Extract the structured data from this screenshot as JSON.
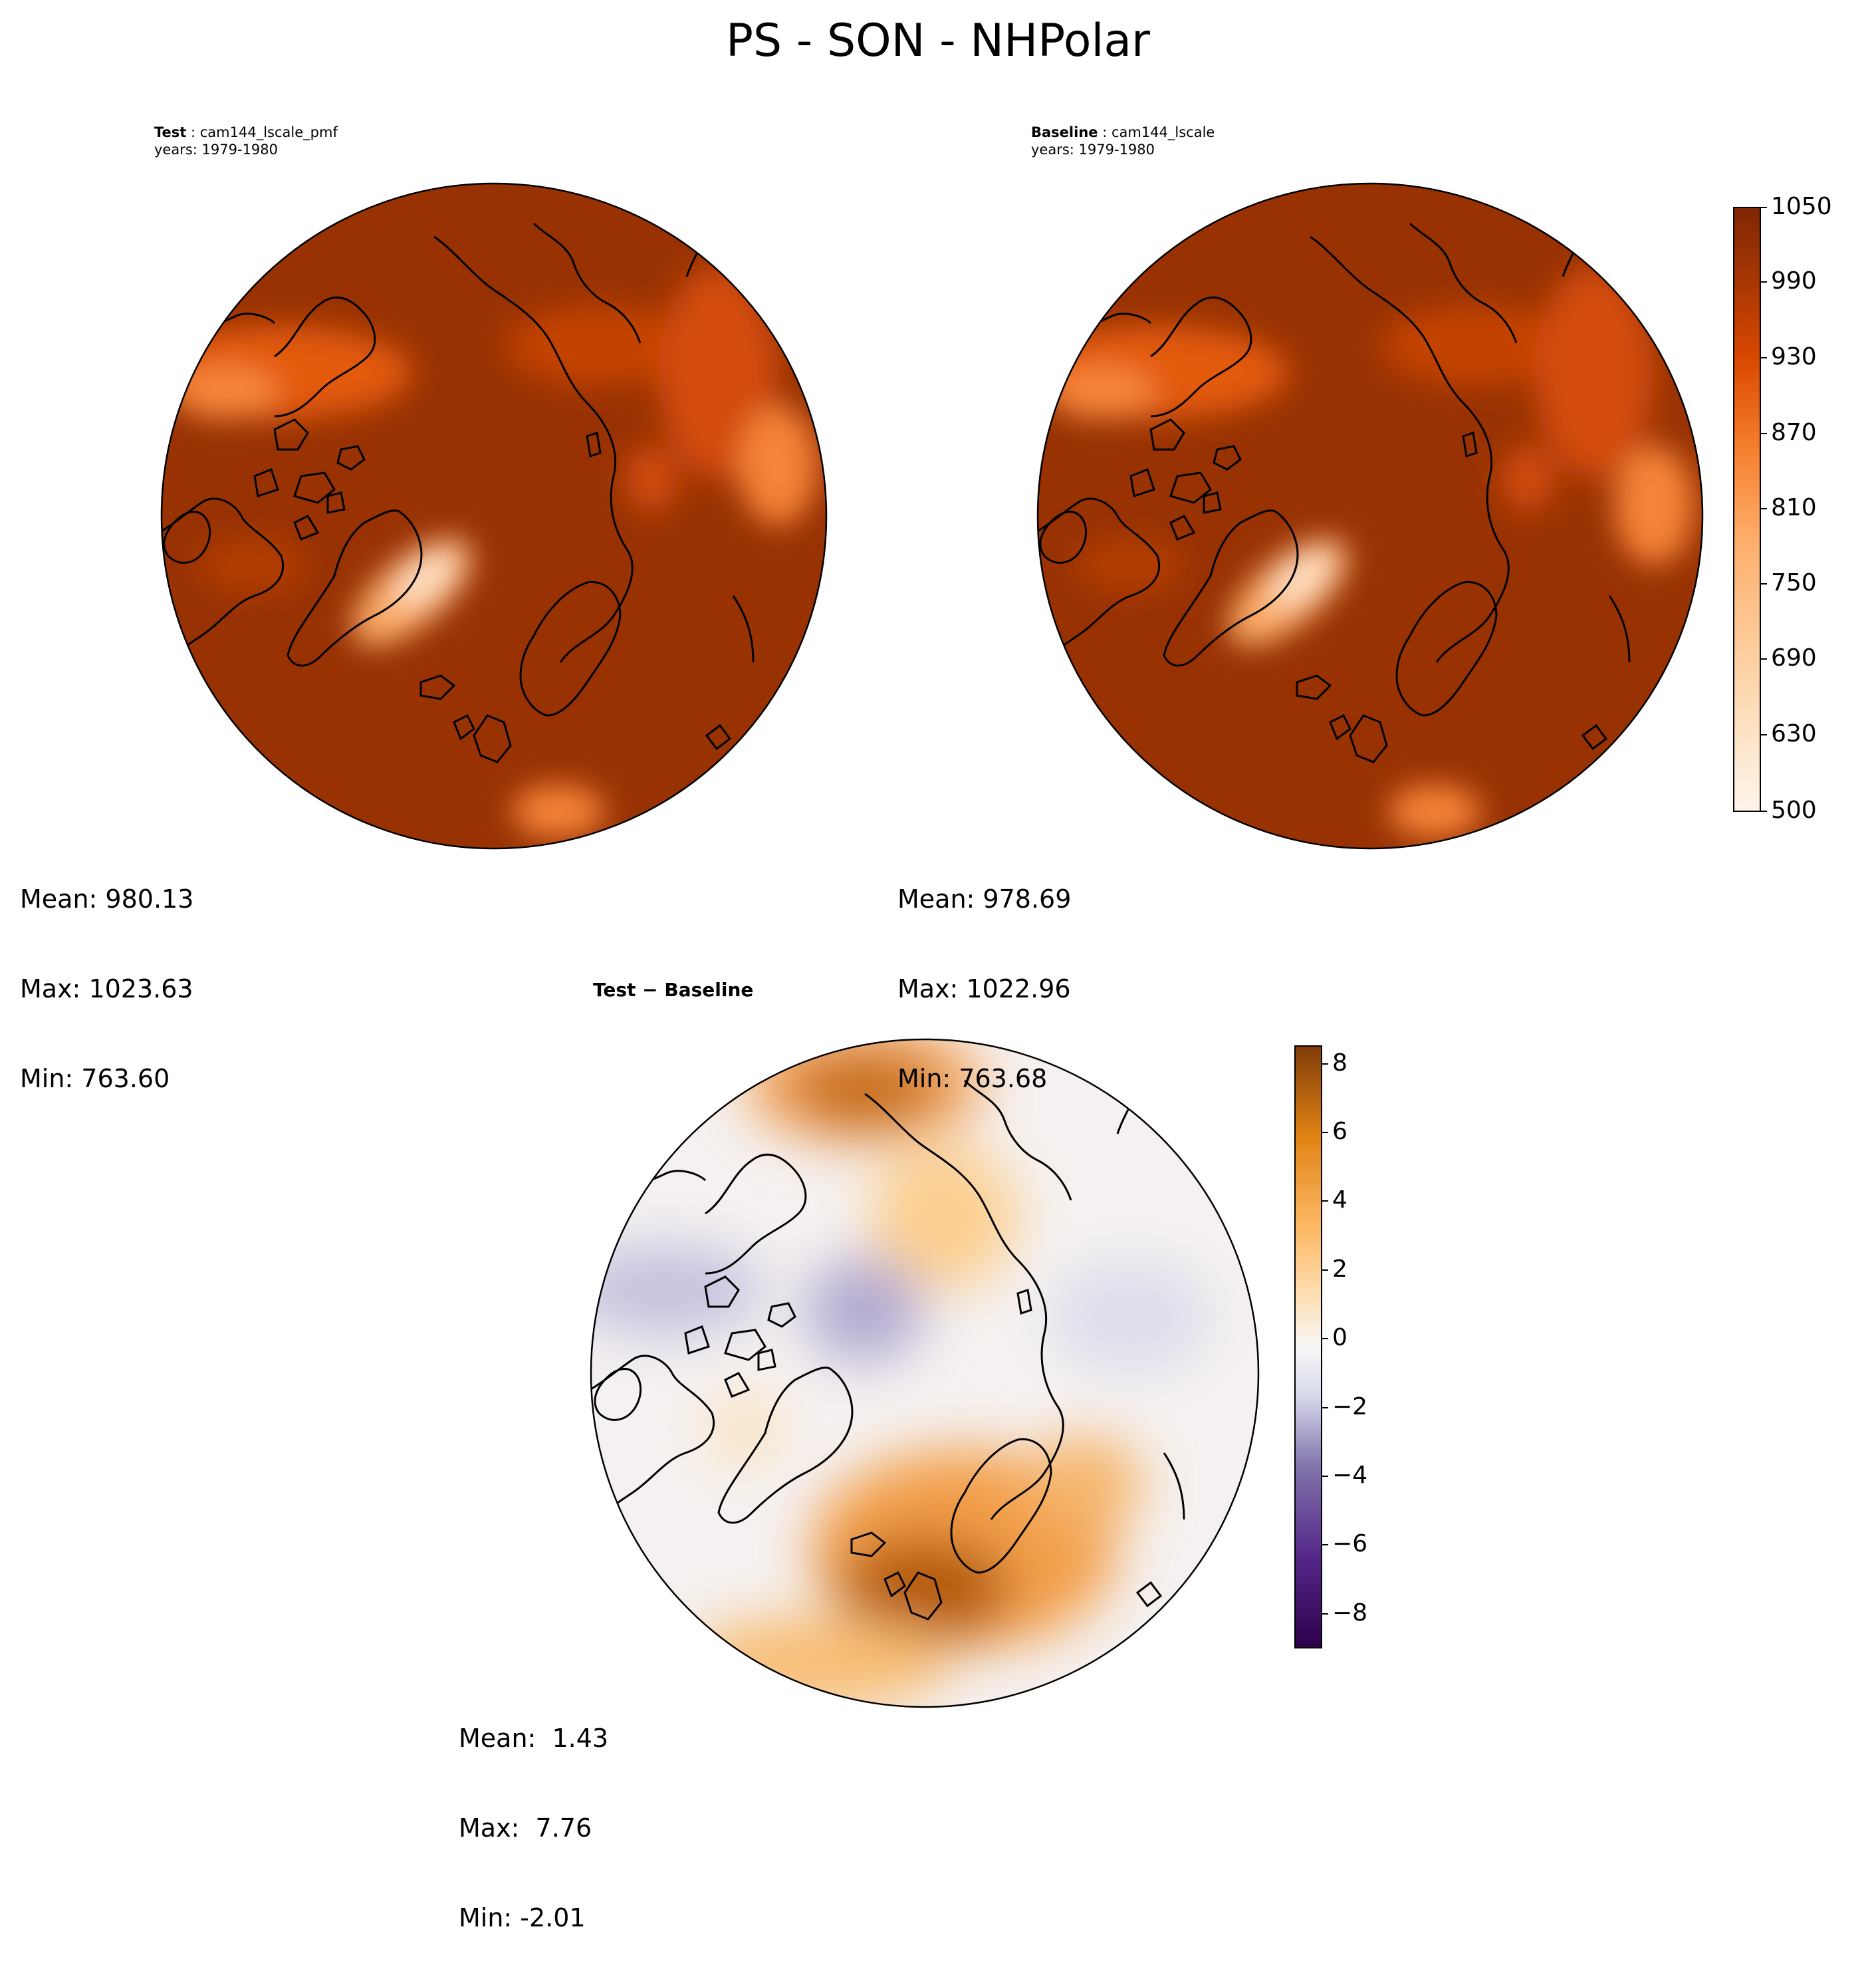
{
  "title": "PS - SON - NHPolar",
  "colors": {
    "land_outline": "#000000",
    "test_main": "#983203",
    "diff_positive": "#b35806",
    "diff_negative": "#2d004b"
  },
  "panels": {
    "test": {
      "label": "Test",
      "case": "cam144_lscale_pmf",
      "years": "years: 1979-1980",
      "mean": "Mean: 980.13",
      "max": "Max: 1023.63",
      "min": "Min: 763.60"
    },
    "baseline": {
      "label": "Baseline",
      "case": "cam144_lscale",
      "years": "years: 1979-1980",
      "mean": "Mean: 978.69",
      "max": "Max: 1022.96",
      "min": "Min: 763.68"
    },
    "diff": {
      "label": "Test − Baseline",
      "mean": "Mean:  1.43",
      "max": "Max:  7.76",
      "min": "Min: -2.01"
    }
  },
  "colorbars": {
    "main": {
      "cmap": "Oranges",
      "range": [
        500,
        1050
      ],
      "ticks": [
        "1050",
        "990",
        "930",
        "870",
        "810",
        "750",
        "690",
        "630",
        "500"
      ]
    },
    "diff": {
      "cmap": "PuOr_r",
      "range": [
        -9,
        8.5
      ],
      "ticks": [
        "8",
        "6",
        "4",
        "2",
        "0",
        "−2",
        "−4",
        "−6",
        "−8"
      ]
    }
  }
}
